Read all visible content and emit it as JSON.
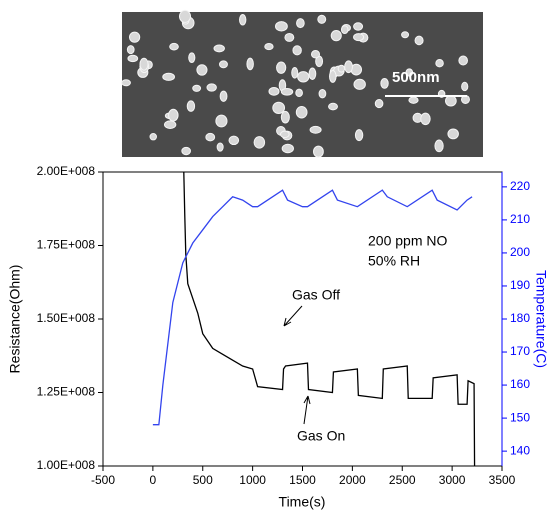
{
  "image": {
    "scale_label": "500nm"
  },
  "chart_data": {
    "type": "line",
    "xlabel": "Time(s)",
    "ylabel": "Resistance(Ohm)",
    "y2label": "Temperature(C)",
    "annotations": [
      "200 ppm NO",
      "50% RH",
      "Gas Off",
      "Gas On"
    ],
    "xlim": [
      -500,
      3500
    ],
    "xticks": [
      -500,
      0,
      500,
      1000,
      1500,
      2000,
      2500,
      3000,
      3500
    ],
    "ylim": [
      100000000,
      200000000
    ],
    "yticks": [
      {
        "value": 100000000,
        "label": "1.00E+008"
      },
      {
        "value": 125000000,
        "label": "1.25E+008"
      },
      {
        "value": 150000000,
        "label": "1.50E+008"
      },
      {
        "value": 175000000,
        "label": "1.75E+008"
      },
      {
        "value": 200000000,
        "label": "2.00E+008"
      }
    ],
    "y2lim": [
      135.5,
      224.5
    ],
    "y2ticks": [
      140,
      150,
      160,
      170,
      180,
      190,
      200,
      210,
      220
    ],
    "axis_color": "#000000",
    "y2_axis_color": "#0000ff",
    "series": [
      {
        "color": "#000000",
        "axis": "y",
        "x": [
          310,
          320,
          330,
          350,
          400,
          450,
          500,
          600,
          700,
          800,
          900,
          1000,
          1050,
          1300,
          1310,
          1330,
          1550,
          1560,
          1800,
          1810,
          2050,
          2060,
          2300,
          2310,
          2550,
          2560,
          2800,
          2810,
          3050,
          3060,
          3150,
          3160,
          3220,
          3225
        ],
        "values": [
          200000000,
          185000000,
          172000000,
          162000000,
          157000000,
          152000000,
          145000000,
          140000000,
          138000000,
          136000000,
          134000000,
          133000000,
          127000000,
          126000000,
          133000000,
          134000000,
          135000000,
          126000000,
          125000000,
          132000000,
          133000000,
          124000000,
          123000000,
          133000000,
          134000000,
          123000000,
          123000000,
          130000000,
          131000000,
          121000000,
          121000000,
          129000000,
          128000000,
          100000000
        ]
      },
      {
        "color": "#3344ee",
        "axis": "y2",
        "x": [
          0,
          60,
          100,
          200,
          300,
          400,
          500,
          600,
          700,
          800,
          900,
          1000,
          1050,
          1300,
          1350,
          1500,
          1550,
          1800,
          1850,
          2050,
          2300,
          2350,
          2550,
          2800,
          2850,
          3050,
          3150,
          3200
        ],
        "values": [
          148,
          148,
          160,
          185,
          197,
          203,
          207,
          211,
          214,
          217,
          216,
          214,
          214,
          219,
          216,
          214,
          214,
          219,
          216,
          214,
          219,
          217,
          214,
          219,
          216,
          213,
          216,
          217
        ]
      }
    ]
  }
}
